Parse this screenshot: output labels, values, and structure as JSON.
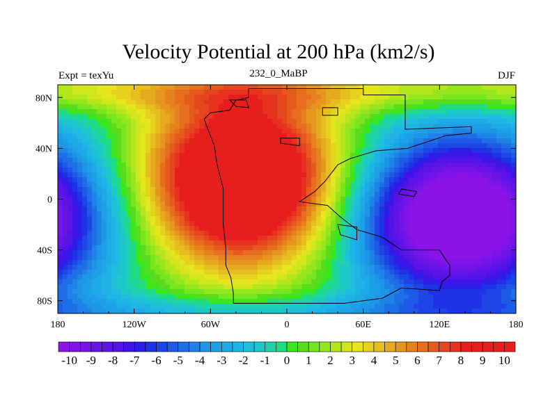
{
  "title": "Velocity Potential at 200 hPa (km2/s)",
  "subtitle_left": "Expt = texYu",
  "subtitle_center": "232_0_MaBP",
  "subtitle_right": "DJF",
  "map": {
    "lon_range": [
      -180,
      180
    ],
    "lat_range": [
      -90,
      90
    ],
    "lon_ticks": [
      {
        "value": -180,
        "label": "180"
      },
      {
        "value": -120,
        "label": "120W"
      },
      {
        "value": -60,
        "label": "60W"
      },
      {
        "value": 0,
        "label": "0"
      },
      {
        "value": 60,
        "label": "60E"
      },
      {
        "value": 120,
        "label": "120E"
      },
      {
        "value": 180,
        "label": "180"
      }
    ],
    "lat_ticks": [
      {
        "value": 80,
        "label": "80N"
      },
      {
        "value": 40,
        "label": "40N"
      },
      {
        "value": 0,
        "label": "0"
      },
      {
        "value": -40,
        "label": "40S"
      },
      {
        "value": -80,
        "label": "80S"
      }
    ],
    "maximum_center": {
      "lon": -35,
      "lat": 15
    },
    "minimum_center": {
      "lon": 135,
      "lat": -15
    }
  },
  "colorbar": {
    "min": -10.5,
    "max": 10.5,
    "step": 0.5,
    "labels": [
      "-10",
      "-9",
      "-8",
      "-7",
      "-6",
      "-5",
      "-4",
      "-3",
      "-2",
      "-1",
      "0",
      "1",
      "2",
      "3",
      "4",
      "5",
      "6",
      "7",
      "8",
      "9",
      "10"
    ],
    "colors": [
      "#8a14e6",
      "#7f14e6",
      "#7414e6",
      "#6914e6",
      "#5e14e6",
      "#5314e6",
      "#4014e6",
      "#2c1ee6",
      "#1e32e6",
      "#1e46e6",
      "#1e5ae6",
      "#1e6ee6",
      "#1e82e6",
      "#1e96e6",
      "#1ea0e6",
      "#1eaae6",
      "#1eb4e6",
      "#1ebedc",
      "#1ec8c8",
      "#1ed2aa",
      "#1edc82",
      "#3ce61e",
      "#5adc1e",
      "#78e61e",
      "#96e61e",
      "#b4e61e",
      "#d2e61e",
      "#e6e61e",
      "#e6d21e",
      "#e6be1e",
      "#e6aa1e",
      "#e6961e",
      "#e6821e",
      "#e66e1e",
      "#e65a1e",
      "#e6461e",
      "#e6321e",
      "#e61e1e",
      "#e61e1e",
      "#e61e1e",
      "#e61e1e",
      "#e61e1e"
    ]
  }
}
